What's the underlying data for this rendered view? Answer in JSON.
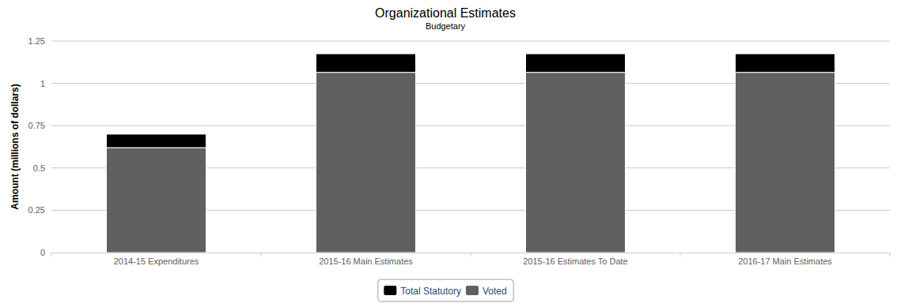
{
  "chart_data": {
    "type": "bar",
    "title": "Organizational Estimates",
    "subtitle": "Budgetary",
    "y_label": "Amount (millions of dollars)",
    "categories": [
      "2014-15 Expenditures",
      "2015-16 Main Estimates",
      "2015-16 Estimates To Date",
      "2016-17 Main Estimates"
    ],
    "series": [
      {
        "name": "Total Statutory",
        "color": "#000000",
        "values": [
          0.08,
          0.11,
          0.11,
          0.11
        ]
      },
      {
        "name": "Voted",
        "color": "#606060",
        "values": [
          0.62,
          1.065,
          1.065,
          1.065
        ]
      }
    ],
    "ylim": [
      0,
      1.25
    ],
    "yticks": [
      0,
      0.25,
      0.5,
      0.75,
      1,
      1.25
    ],
    "stacked": true,
    "grid": true,
    "legend": "bottom"
  }
}
